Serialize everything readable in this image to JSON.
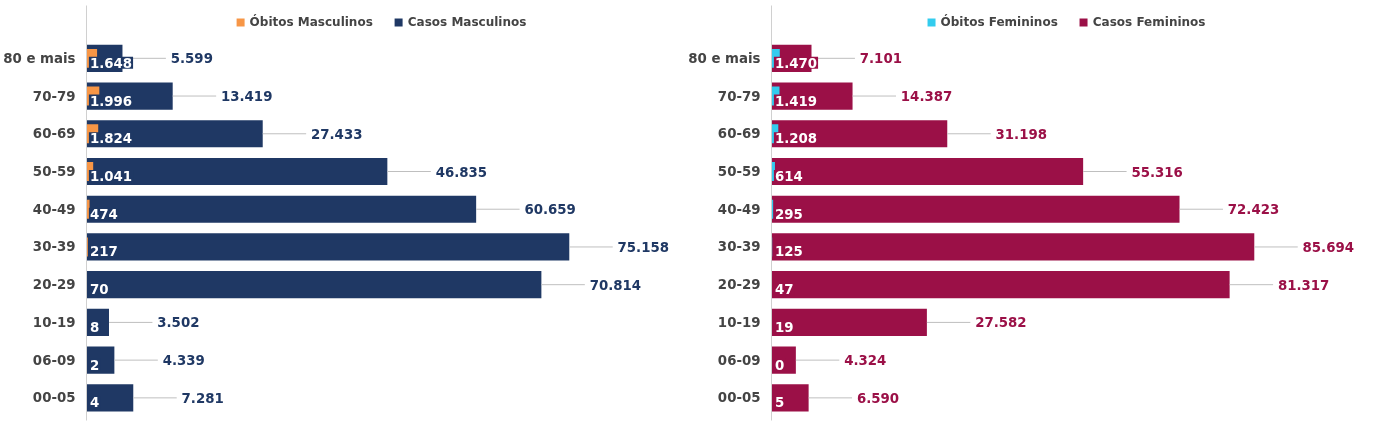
{
  "chart_data": [
    {
      "type": "bar",
      "orientation": "horizontal",
      "legend": "top",
      "grid": false,
      "tick_labels": "y",
      "categories": [
        "80 e mais",
        "70-79",
        "60-69",
        "50-59",
        "40-49",
        "30-39",
        "20-29",
        "10-19",
        "06-09",
        "00-05"
      ],
      "series": [
        {
          "name": "Óbitos Masculinos",
          "color": "#f79646",
          "values": [
            1648,
            1996,
            1824,
            1041,
            474,
            217,
            70,
            8,
            2,
            4
          ],
          "value_labels": [
            "1.648",
            "1.996",
            "1.824",
            "1.041",
            "474",
            "217",
            "70",
            "8",
            "2",
            "4"
          ]
        },
        {
          "name": "Casos Masculinos",
          "color": "#1f3864",
          "values": [
            5599,
            13419,
            27433,
            46835,
            60659,
            75158,
            70814,
            3502,
            4339,
            7281
          ],
          "value_labels": [
            "5.599",
            "13.419",
            "27.433",
            "46.835",
            "60.659",
            "75.158",
            "70.814",
            "3.502",
            "4.339",
            "7.281"
          ]
        }
      ]
    },
    {
      "type": "bar",
      "orientation": "horizontal",
      "legend": "top",
      "grid": false,
      "tick_labels": "y",
      "categories": [
        "80 e mais",
        "70-79",
        "60-69",
        "50-59",
        "40-49",
        "30-39",
        "20-29",
        "10-19",
        "06-09",
        "00-05"
      ],
      "series": [
        {
          "name": "Óbitos Femininos",
          "color": "#33ccee",
          "values": [
            1470,
            1419,
            1208,
            614,
            295,
            125,
            47,
            19,
            0,
            5
          ],
          "value_labels": [
            "1.470",
            "1.419",
            "1.208",
            "614",
            "295",
            "125",
            "47",
            "19",
            "0",
            "5"
          ]
        },
        {
          "name": "Casos Femininos",
          "color": "#9b1047",
          "values": [
            7101,
            14387,
            31198,
            55316,
            72423,
            85694,
            81317,
            27582,
            4324,
            6590
          ],
          "value_labels": [
            "7.101",
            "14.387",
            "31.198",
            "55.316",
            "72.423",
            "85.694",
            "81.317",
            "27.582",
            "4.324",
            "6.590"
          ]
        }
      ]
    }
  ]
}
